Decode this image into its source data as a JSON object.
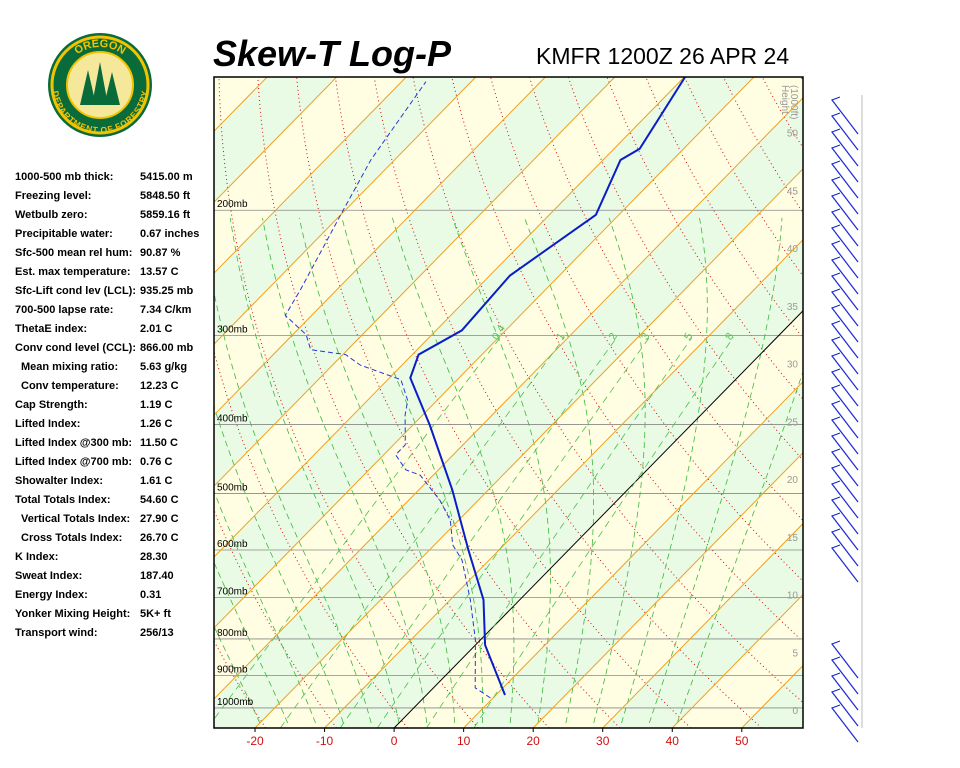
{
  "logo": {
    "top": "OREGON",
    "bottom": "DEPARTMENT OF FORESTRY"
  },
  "stats": [
    {
      "label": "1000-500 mb thick:",
      "value": "5415.00 m"
    },
    {
      "label": "Freezing level:",
      "value": "5848.50 ft"
    },
    {
      "label": "Wetbulb zero:",
      "value": "5859.16 ft"
    },
    {
      "label": "Precipitable water:",
      "value": "0.67 inches"
    },
    {
      "label": "Sfc-500 mean rel hum:",
      "value": "90.87 %"
    },
    {
      "label": "Est. max temperature:",
      "value": "13.57 C"
    },
    {
      "label": "Sfc-Lift cond lev (LCL):",
      "value": "935.25 mb"
    },
    {
      "label": "700-500 lapse rate:",
      "value": "7.34 C/km"
    },
    {
      "label": "ThetaE index:",
      "value": "2.01 C"
    },
    {
      "label": "Conv cond level (CCL):",
      "value": "866.00 mb"
    },
    {
      "label": "Mean mixing ratio:",
      "value": "5.63 g/kg"
    },
    {
      "label": "Conv temperature:",
      "value": "12.23 C"
    },
    {
      "label": "Cap Strength:",
      "value": "1.19 C"
    },
    {
      "label": "Lifted Index:",
      "value": "1.26 C"
    },
    {
      "label": "Lifted Index @300 mb:",
      "value": "11.50 C"
    },
    {
      "label": "Lifted Index @700 mb:",
      "value": "0.76 C"
    },
    {
      "label": "Showalter Index:",
      "value": "1.61 C"
    },
    {
      "label": "Total Totals Index:",
      "value": "54.60 C"
    },
    {
      "label": "Vertical Totals Index:",
      "value": "27.90 C"
    },
    {
      "label": "Cross Totals Index:",
      "value": "26.70 C"
    },
    {
      "label": "K Index:",
      "value": "28.30"
    },
    {
      "label": "Sweat Index:",
      "value": "187.40"
    },
    {
      "label": "Energy Index:",
      "value": "0.31"
    },
    {
      "label": "Yonker Mixing Height:",
      "value": "5K+ ft"
    },
    {
      "label": "Transport wind:",
      "value": "256/13"
    }
  ],
  "chart_data": {
    "type": "skewt",
    "title": "Skew-T Log-P",
    "subtitle": "KMFR 1200Z 26 APR 24",
    "xlim": [
      -25.9,
      58.8
    ],
    "xticks": [
      -20,
      -10,
      0,
      10,
      20,
      30,
      40,
      50
    ],
    "ylim": [
      1067,
      130
    ],
    "log_y": true,
    "yticks": [
      {
        "value": 200,
        "label": "200mb"
      },
      {
        "value": 300,
        "label": "300mb"
      },
      {
        "value": 400,
        "label": "400mb"
      },
      {
        "value": 500,
        "label": "500mb"
      },
      {
        "value": 600,
        "label": "600mb"
      },
      {
        "value": 700,
        "label": "700mb"
      },
      {
        "value": 800,
        "label": "800mb"
      },
      {
        "value": 900,
        "label": "900mb"
      },
      {
        "value": 1000,
        "label": "1000mb"
      }
    ],
    "height_label": [
      "Height",
      "(1000ft)"
    ],
    "height_ticks": [
      0,
      5,
      10,
      15,
      20,
      25,
      30,
      35,
      40,
      45,
      50
    ],
    "mixing_ratio_labels": [
      0.4,
      1,
      2,
      3,
      5,
      8
    ],
    "series": [
      {
        "color": "#0a1ec8",
        "dashed": false,
        "pressure": [
          959,
          816,
          705,
          600,
          494,
          401,
          344,
          319,
          295,
          247,
          203,
          170,
          164,
          130
        ],
        "values": [
          11.3,
          1.4,
          -5.2,
          -14.4,
          -25.2,
          -37.5,
          -47.0,
          -49.1,
          -46.3,
          -47.1,
          -43.3,
          -47.5,
          -46.3,
          -49.9
        ]
      },
      {
        "color": "#2838d8",
        "dashed": true,
        "pressure": [
          968,
          937,
          803,
          705,
          620,
          590,
          545,
          511,
          471,
          463,
          441,
          427,
          388,
          370,
          346,
          330,
          319,
          314,
          299,
          281,
          259,
          203,
          170,
          132
        ],
        "values": [
          9.6,
          6.0,
          -0.7,
          -7.1,
          -13.9,
          -17.4,
          -21.2,
          -25.5,
          -31.9,
          -34.7,
          -38.3,
          -38.3,
          -42.5,
          -44.2,
          -48.1,
          -56.0,
          -59.6,
          -65.3,
          -68.1,
          -73.8,
          -75.2,
          -80.0,
          -83.4,
          -86.5
        ]
      }
    ]
  }
}
